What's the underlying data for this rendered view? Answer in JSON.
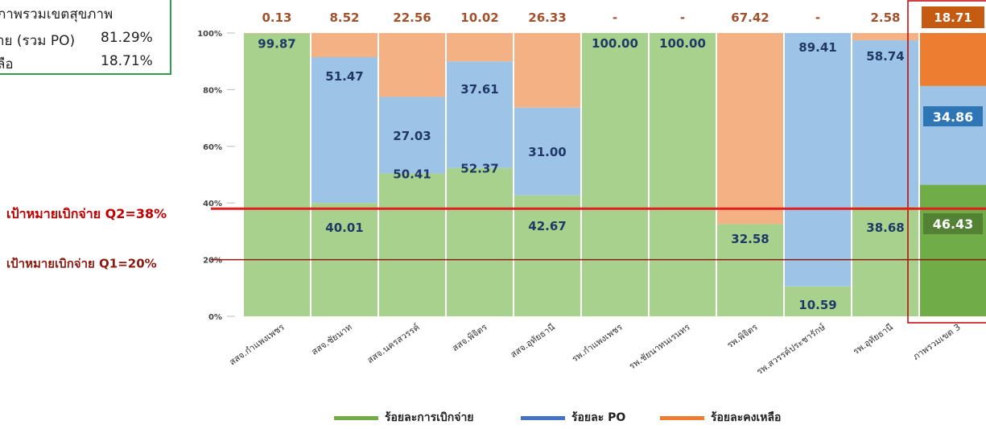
{
  "summary": {
    "title": "ภาพรวมเขตสุขภาพ",
    "rows": [
      {
        "label": "าย (รวม PO)",
        "value": "81.29%"
      },
      {
        "label": "ลือ",
        "value": "18.71%"
      }
    ]
  },
  "chart_data": {
    "type": "bar",
    "stacked": true,
    "categories": [
      "สสจ.กำแพงเพชร",
      "สสจ.ชัยนาท",
      "สสจ.นครสวรรค์",
      "สสจ.พิจิตร",
      "สสจ.อุทัยธานี",
      "รพ.กำแพงเพชร",
      "รพ.ชัยนาทนเรนทร",
      "รพ.พิจิตร",
      "รพ.สวรรค์ประชารักษ์",
      "รพ.อุทัยธานี",
      "ภาพรวมเขต 3"
    ],
    "series": [
      {
        "name": "ร้อยละการเบิกจ่าย",
        "color": "#a9d18e",
        "values": [
          99.87,
          40.01,
          50.41,
          52.37,
          42.67,
          100.0,
          100.0,
          32.58,
          10.59,
          38.68,
          46.43
        ]
      },
      {
        "name": "ร้อยละ PO",
        "color": "#9dc3e6",
        "values": [
          0,
          51.47,
          27.03,
          37.61,
          31.0,
          0,
          0,
          0,
          89.41,
          58.74,
          34.86
        ]
      },
      {
        "name": "ร้อยละคงเหลือ",
        "color": "#f4b183",
        "values": [
          0.13,
          8.52,
          22.56,
          10.02,
          26.33,
          0,
          0,
          67.42,
          0,
          2.58,
          18.71
        ]
      }
    ],
    "bar_labels": {
      "disbursed": [
        "99.87",
        "40.01",
        "50.41",
        "52.37",
        "42.67",
        "100.00",
        "100.00",
        "32.58",
        "10.59",
        "38.68",
        "46.43"
      ],
      "po": [
        "",
        "51.47",
        "27.03",
        "37.61",
        "31.00",
        "",
        "",
        "",
        "89.41",
        "58.74",
        "34.86"
      ],
      "top": [
        "0.13",
        "8.52",
        "22.56",
        "10.02",
        "26.33",
        "-",
        "-",
        "67.42",
        "-",
        "2.58",
        "18.71"
      ]
    },
    "highlight": {
      "index": 10,
      "colors": {
        "disbursed": "#70ad47",
        "po": "#9dc3e6",
        "remaining": "#ed7d31",
        "label_bg_disbursed": "#548235",
        "label_bg_po": "#2e75b6",
        "label_bg_top": "#c55a11"
      }
    },
    "yticks": [
      "0%",
      "20%",
      "40%",
      "60%",
      "80%",
      "100%"
    ],
    "ylim": [
      0,
      100
    ],
    "target_lines": [
      {
        "label": "เป้าหมายเบิกจ่าย Q2=38%",
        "value": 38,
        "color": "#e02020"
      },
      {
        "label": "เป้าหมายเบิกจ่าย Q1=20%",
        "value": 20,
        "color": "#8b1a10"
      }
    ],
    "top_label_color": "#a0522d",
    "value_label_color": "#1f3864",
    "highlight_box_color": "#c00000",
    "legend": [
      {
        "label": "ร้อยละการเบิกจ่าย",
        "color": "#70ad47"
      },
      {
        "label": "ร้อยละ PO",
        "color": "#4472c4"
      },
      {
        "label": "ร้อยละคงเหลือ",
        "color": "#ed7d31"
      }
    ],
    "legend_position": "bottom"
  }
}
